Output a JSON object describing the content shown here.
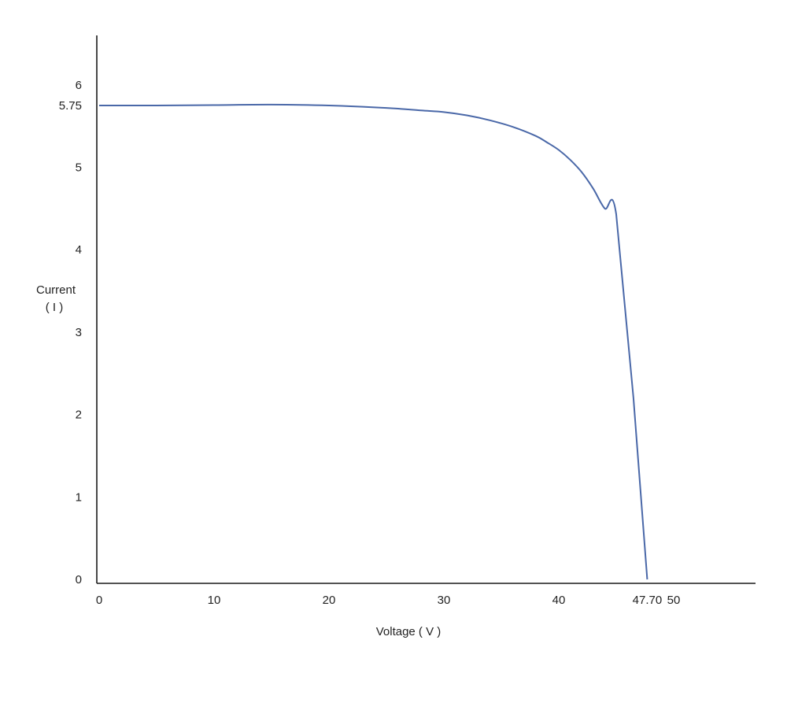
{
  "chart_data": {
    "type": "line",
    "xlabel": "Voltage ( V )",
    "ylabel_lines": [
      "Current",
      "( I )"
    ],
    "xlim": [
      0,
      55
    ],
    "ylim": [
      0,
      6.6
    ],
    "x_ticks": [
      {
        "value": 0,
        "label": "0"
      },
      {
        "value": 10,
        "label": "10"
      },
      {
        "value": 20,
        "label": "20"
      },
      {
        "value": 30,
        "label": "30"
      },
      {
        "value": 40,
        "label": "40"
      },
      {
        "value": 47.7,
        "label": "47.70"
      },
      {
        "value": 50,
        "label": "50"
      }
    ],
    "y_ticks": [
      {
        "value": 0,
        "label": "0"
      },
      {
        "value": 1,
        "label": "1"
      },
      {
        "value": 2,
        "label": "2"
      },
      {
        "value": 3,
        "label": "3"
      },
      {
        "value": 4,
        "label": "4"
      },
      {
        "value": 5,
        "label": "5"
      },
      {
        "value": 5.75,
        "label": "5.75"
      },
      {
        "value": 6,
        "label": "6"
      }
    ],
    "grid": false,
    "line_color": "#4a68a8",
    "axis_color": "#1a1a1a",
    "series": [
      {
        "points": [
          [
            0,
            5.75
          ],
          [
            5,
            5.75
          ],
          [
            10,
            5.755
          ],
          [
            15,
            5.76
          ],
          [
            20,
            5.75
          ],
          [
            25,
            5.72
          ],
          [
            28,
            5.69
          ],
          [
            30,
            5.67
          ],
          [
            32,
            5.63
          ],
          [
            34,
            5.57
          ],
          [
            36,
            5.49
          ],
          [
            38,
            5.38
          ],
          [
            39,
            5.3
          ],
          [
            40,
            5.21
          ],
          [
            41,
            5.09
          ],
          [
            42,
            4.94
          ],
          [
            43,
            4.74
          ],
          [
            44,
            4.5
          ],
          [
            45,
            4.43
          ],
          [
            46.5,
            2.2
          ],
          [
            47.7,
            0
          ]
        ]
      }
    ]
  }
}
